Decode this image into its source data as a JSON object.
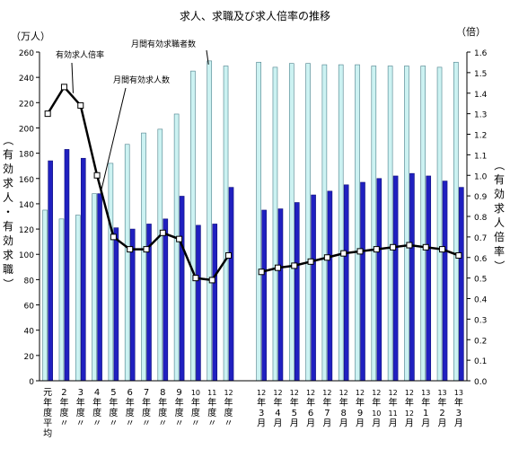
{
  "chart_data": {
    "type": "bar",
    "title": "求人、求職及び求人倍率の推移",
    "left_axis_unit": "（万人）",
    "right_axis_unit": "（倍）",
    "left_axis_label": "（有効求人・有効求職）",
    "right_axis_label": "（有効求人倍率）",
    "left_ylim": [
      0,
      260
    ],
    "left_ticks": [
      "0",
      "20",
      "40",
      "60",
      "80",
      "100",
      "120",
      "140",
      "160",
      "180",
      "200",
      "220",
      "240",
      "260"
    ],
    "right_ylim": [
      0,
      1.6
    ],
    "right_ticks": [
      "0.0",
      "0.1",
      "0.2",
      "0.3",
      "0.4",
      "0.5",
      "0.6",
      "0.7",
      "0.8",
      "0.9",
      "1.0",
      "1.1",
      "1.2",
      "1.3",
      "1.4",
      "1.5",
      "1.6"
    ],
    "grid": false,
    "categories": [
      {
        "lines": [
          "元",
          "年",
          "度",
          "平",
          "均"
        ]
      },
      {
        "lines": [
          "2",
          "年",
          "度",
          "〃"
        ]
      },
      {
        "lines": [
          "3",
          "年",
          "度",
          "〃"
        ]
      },
      {
        "lines": [
          "4",
          "年",
          "度",
          "〃"
        ]
      },
      {
        "lines": [
          "5",
          "年",
          "度",
          "〃"
        ]
      },
      {
        "lines": [
          "6",
          "年",
          "度",
          "〃"
        ]
      },
      {
        "lines": [
          "7",
          "年",
          "度",
          "〃"
        ]
      },
      {
        "lines": [
          "8",
          "年",
          "度",
          "〃"
        ]
      },
      {
        "lines": [
          "9",
          "年",
          "度",
          "〃"
        ]
      },
      {
        "lines": [
          "10",
          "年",
          "度",
          "〃"
        ]
      },
      {
        "lines": [
          "11",
          "年",
          "度",
          "〃"
        ]
      },
      {
        "lines": [
          "12",
          "年",
          "度",
          "〃"
        ]
      },
      {
        "lines": []
      },
      {
        "lines": [
          "12",
          "年",
          "3",
          "月"
        ]
      },
      {
        "lines": [
          "12",
          "年",
          "4",
          "月"
        ]
      },
      {
        "lines": [
          "12",
          "年",
          "5",
          "月"
        ]
      },
      {
        "lines": [
          "12",
          "年",
          "6",
          "月"
        ]
      },
      {
        "lines": [
          "12",
          "年",
          "7",
          "月"
        ]
      },
      {
        "lines": [
          "12",
          "年",
          "8",
          "月"
        ]
      },
      {
        "lines": [
          "12",
          "年",
          "9",
          "月"
        ]
      },
      {
        "lines": [
          "12",
          "年",
          "10",
          "月"
        ]
      },
      {
        "lines": [
          "12",
          "年",
          "11",
          "月"
        ]
      },
      {
        "lines": [
          "12",
          "年",
          "12",
          "月"
        ]
      },
      {
        "lines": [
          "13",
          "年",
          "1",
          "月"
        ]
      },
      {
        "lines": [
          "13",
          "年",
          "2",
          "月"
        ]
      },
      {
        "lines": [
          "13",
          "年",
          "3",
          "月"
        ]
      }
    ],
    "series": [
      {
        "name": "月間有効求職者数",
        "kind": "bar",
        "color": "#ccf2f2",
        "axis": "left",
        "values": [
          135,
          128,
          131,
          148,
          172,
          187,
          196,
          199,
          211,
          245,
          253,
          249,
          null,
          252,
          248,
          251,
          251,
          250,
          250,
          250,
          249,
          249,
          249,
          249,
          248,
          252
        ]
      },
      {
        "name": "月間有効求人数",
        "kind": "bar",
        "color": "#2020c0",
        "axis": "left",
        "values": [
          174,
          183,
          176,
          148,
          121,
          120,
          124,
          128,
          146,
          123,
          124,
          153,
          null,
          135,
          136,
          141,
          147,
          150,
          155,
          157,
          160,
          162,
          164,
          162,
          158,
          153
        ]
      },
      {
        "name": "有効求人倍率",
        "kind": "line",
        "color": "#000000",
        "axis": "right",
        "values": [
          1.3,
          1.43,
          1.34,
          1.0,
          0.7,
          0.64,
          0.64,
          0.72,
          0.69,
          0.5,
          0.49,
          0.61,
          null,
          0.53,
          0.55,
          0.56,
          0.58,
          0.6,
          0.62,
          0.63,
          0.64,
          0.65,
          0.66,
          0.65,
          0.64,
          0.61
        ]
      }
    ],
    "annotations": [
      {
        "text": "有効求人倍率",
        "series": "有効求人倍率"
      },
      {
        "text": "月間有効求職者数",
        "series": "月間有効求職者数"
      },
      {
        "text": "月間有効求人数",
        "series": "月間有効求人数"
      }
    ]
  }
}
